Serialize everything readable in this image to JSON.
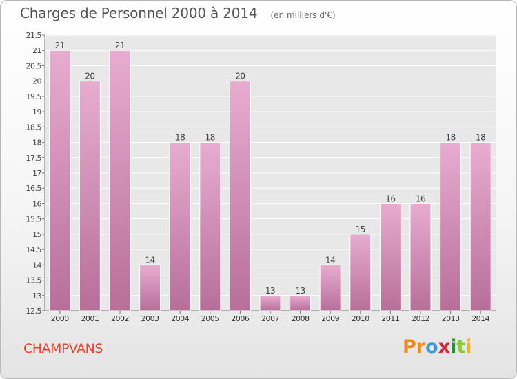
{
  "chart_data": {
    "type": "bar",
    "title": "Charges de Personnel 2000 à 2014",
    "subtitle": "(en milliers d'€)",
    "xlabel": "",
    "ylabel": "",
    "categories": [
      "2000",
      "2001",
      "2002",
      "2003",
      "2004",
      "2005",
      "2006",
      "2007",
      "2008",
      "2009",
      "2010",
      "2011",
      "2012",
      "2013",
      "2014"
    ],
    "values": [
      21,
      20,
      21,
      14,
      18,
      18,
      20,
      13,
      13,
      14,
      15,
      16,
      16,
      18,
      18
    ],
    "value_labels": [
      "21",
      "20",
      "21",
      "14",
      "18",
      "18",
      "20",
      "13",
      "13",
      "14",
      "15",
      "16",
      "16",
      "18",
      "18"
    ],
    "ylim": [
      12.5,
      21.5
    ],
    "yticks": [
      12.5,
      13,
      13.5,
      14,
      14.5,
      15,
      15.5,
      16,
      16.5,
      17,
      17.5,
      18,
      18.5,
      19,
      19.5,
      20,
      20.5,
      21,
      21.5
    ],
    "ytick_labels": [
      "12.5",
      "13",
      "13.5",
      "14",
      "14.5",
      "15",
      "15.5",
      "16",
      "16.5",
      "17",
      "17.5",
      "18",
      "18.5",
      "19",
      "19.5",
      "20",
      "20.5",
      "21",
      "21.5"
    ],
    "grid": true,
    "legend": "none",
    "bar_color_top": "#e8acd0",
    "bar_color_bottom": "#b76f9a"
  },
  "commune_name": "CHAMPVANS",
  "logo": {
    "letters": [
      "P",
      "r",
      "o",
      "x",
      "i",
      "t",
      "i"
    ],
    "colors": [
      "#f08a1e",
      "#f08a1e",
      "#3a9ad9",
      "#d6243a",
      "#2c8e3a",
      "#8cc63f",
      "#f2b705"
    ]
  }
}
